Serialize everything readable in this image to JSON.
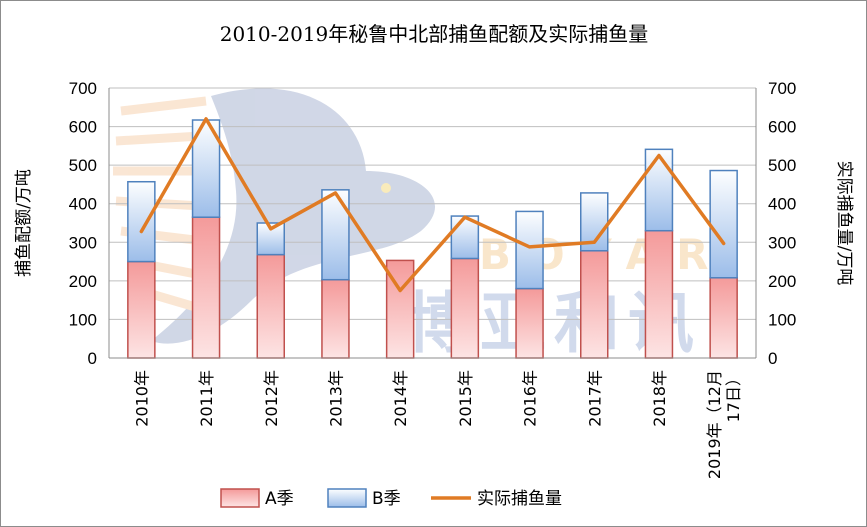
{
  "chart_data": {
    "type": "bar",
    "stacked": true,
    "title": "2010-2019年秘鲁中北部捕鱼配额及实际捕鱼量",
    "ylabel_left": "捕鱼配额/万吨",
    "ylabel_right": "实际捕鱼量/万吨",
    "xlabel": "",
    "ylim": [
      0,
      700
    ],
    "yticks": [
      0,
      100,
      200,
      300,
      400,
      500,
      600,
      700
    ],
    "grid": true,
    "legend_position": "bottom",
    "categories": [
      "2010年",
      "2011年",
      "2012年",
      "2013年",
      "2014年",
      "2015年",
      "2016年",
      "2017年",
      "2018年",
      "2019年（12月17日）"
    ],
    "category_lines": [
      [
        "2010年"
      ],
      [
        "2011年"
      ],
      [
        "2012年"
      ],
      [
        "2013年"
      ],
      [
        "2014年"
      ],
      [
        "2015年"
      ],
      [
        "2016年"
      ],
      [
        "2017年"
      ],
      [
        "2018年"
      ],
      [
        "2019年（12月",
        "17日）"
      ]
    ],
    "series": [
      {
        "name": "A季",
        "type": "bar",
        "values": [
          250,
          365,
          268,
          203,
          253,
          258,
          180,
          278,
          330,
          208
        ],
        "color": "#f5a9a9"
      },
      {
        "name": "B季",
        "type": "bar",
        "values": [
          207,
          252,
          82,
          233,
          0,
          110,
          200,
          150,
          211,
          278
        ],
        "color": "#a9c6ee"
      },
      {
        "name": "实际捕鱼量",
        "type": "line",
        "values": [
          328,
          620,
          335,
          428,
          175,
          365,
          288,
          300,
          525,
          297
        ],
        "color": "#e07b24"
      }
    ]
  },
  "watermark": {
    "words": [
      "BOYAR",
      "博亚和讯"
    ]
  }
}
